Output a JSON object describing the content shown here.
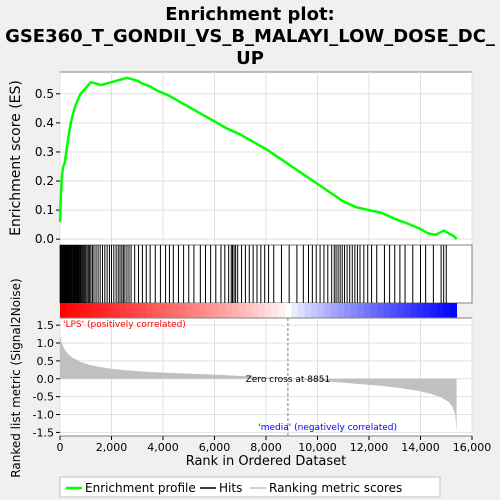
{
  "chart_data": {
    "type": "line",
    "title": "Enrichment plot: GSE360_T_GONDII_VS_B_MALAYI_LOW_DOSE_DC_UP",
    "title_lines": [
      "Enrichment plot:",
      "GSE360_T_GONDII_VS_B_MALAYI_LOW_DOSE_DC_",
      "UP"
    ],
    "xlabel": "Rank in Ordered Dataset",
    "xlim": [
      0,
      16000
    ],
    "x_ticks": [
      0,
      2000,
      4000,
      6000,
      8000,
      10000,
      12000,
      14000,
      16000
    ],
    "x_tick_labels": [
      "0",
      "2,000",
      "4,000",
      "6,000",
      "8,000",
      "10,000",
      "12,000",
      "14,000",
      "16,000"
    ],
    "dataset_size": 15400,
    "es_panel": {
      "ylabel": "Enrichment score (ES)",
      "ylim": [
        -0.02,
        0.575
      ],
      "y_ticks": [
        0.0,
        0.1,
        0.2,
        0.3,
        0.4,
        0.5
      ],
      "y_tick_labels": [
        "0.0",
        "0.1",
        "0.2",
        "0.3",
        "0.4",
        "0.5"
      ],
      "line_color": "#00ff00",
      "series": [
        {
          "x": [
            0,
            40,
            80,
            120,
            180,
            260,
            340,
            420,
            500,
            600,
            700,
            800,
            900,
            1000,
            1100,
            1200,
            1400,
            1600,
            1800,
            2000,
            2200,
            2400,
            2600,
            2800,
            3000,
            3200,
            3500,
            3800,
            4200,
            4600,
            5000,
            5500,
            6000,
            6500,
            7000,
            7500,
            8000,
            8500,
            9000,
            9500,
            10000,
            10500,
            11000,
            11500,
            12000,
            12500,
            13000,
            13300,
            13600,
            14000,
            14300,
            14600,
            14900,
            15100,
            15300,
            15400
          ],
          "y": [
            0.06,
            0.16,
            0.22,
            0.25,
            0.26,
            0.31,
            0.36,
            0.4,
            0.43,
            0.46,
            0.48,
            0.5,
            0.51,
            0.52,
            0.53,
            0.54,
            0.535,
            0.53,
            0.535,
            0.54,
            0.545,
            0.55,
            0.555,
            0.55,
            0.545,
            0.535,
            0.525,
            0.51,
            0.495,
            0.475,
            0.455,
            0.43,
            0.405,
            0.38,
            0.36,
            0.335,
            0.31,
            0.28,
            0.25,
            0.22,
            0.19,
            0.16,
            0.13,
            0.11,
            0.1,
            0.09,
            0.07,
            0.06,
            0.05,
            0.035,
            0.02,
            0.015,
            0.03,
            0.02,
            0.01,
            0.0
          ]
        }
      ]
    },
    "hits": [
      10,
      30,
      55,
      75,
      95,
      120,
      140,
      165,
      185,
      210,
      230,
      255,
      280,
      300,
      325,
      350,
      375,
      400,
      430,
      460,
      490,
      520,
      550,
      580,
      610,
      640,
      670,
      700,
      735,
      770,
      800,
      840,
      880,
      920,
      960,
      1000,
      1050,
      1100,
      1150,
      1200,
      1260,
      1320,
      1400,
      1480,
      1560,
      1650,
      1740,
      1830,
      1920,
      2000,
      2090,
      2180,
      2260,
      2330,
      2400,
      2460,
      2520,
      2600,
      2680,
      2760,
      2900,
      3050,
      3200,
      3350,
      3500,
      3700,
      3900,
      4100,
      4250,
      4400,
      4600,
      4800,
      5000,
      5200,
      5450,
      5650,
      5850,
      6050,
      6250,
      6400,
      6550,
      6650,
      6700,
      6760,
      6820,
      6900,
      7050,
      7200,
      7350,
      7500,
      7650,
      7800,
      7950,
      8100,
      8300,
      8600,
      8900,
      9200,
      9450,
      9650,
      9800,
      9950,
      10100,
      10250,
      10400,
      10550,
      10650,
      10720,
      10800,
      10880,
      10960,
      11050,
      11150,
      11250,
      11350,
      11450,
      11550,
      11650,
      11800,
      11950,
      12100,
      12300,
      12600,
      12800,
      13000,
      13200,
      13400,
      13700,
      14000,
      14200,
      14500,
      14800,
      14900,
      15000
    ],
    "metric_panel": {
      "ylabel": "Ranked list metric (Signal2Noise)",
      "ylim": [
        -1.6,
        1.7
      ],
      "y_ticks": [
        -1.5,
        -1.0,
        -0.5,
        0.0,
        0.5,
        1.0,
        1.5
      ],
      "y_tick_labels": [
        "-1.5",
        "-1.0",
        "-0.5",
        "0.0",
        "0.5",
        "1.0",
        "1.5"
      ],
      "fill_color": "#c0c0c0",
      "x": [
        0,
        50,
        150,
        300,
        500,
        800,
        1200,
        1800,
        2500,
        3500,
        4500,
        5500,
        6500,
        7500,
        8300,
        8851,
        9500,
        10500,
        11500,
        12500,
        13300,
        13900,
        14400,
        14800,
        15100,
        15250,
        15350,
        15400
      ],
      "y": [
        1.25,
        1.05,
        0.85,
        0.7,
        0.58,
        0.47,
        0.38,
        0.3,
        0.24,
        0.19,
        0.16,
        0.13,
        0.1,
        0.06,
        0.03,
        0.0,
        -0.03,
        -0.08,
        -0.14,
        -0.2,
        -0.27,
        -0.34,
        -0.42,
        -0.52,
        -0.65,
        -0.8,
        -1.0,
        -1.5
      ],
      "zero_cross_label": "Zero cross at 8851",
      "zero_cross": 8851,
      "pos_label": "'LPS' (positively correlated)",
      "neg_label": "'media' (negatively correlated)",
      "pos_color": "#ff0000",
      "neg_color": "#0000ff"
    },
    "legend": {
      "placement": "bottom",
      "entries": [
        {
          "label": "Enrichment profile",
          "color": "#00ff00"
        },
        {
          "label": "Hits",
          "color": "#000000"
        },
        {
          "label": "Ranking metric scores",
          "color": "#c0c0c0"
        }
      ]
    }
  }
}
